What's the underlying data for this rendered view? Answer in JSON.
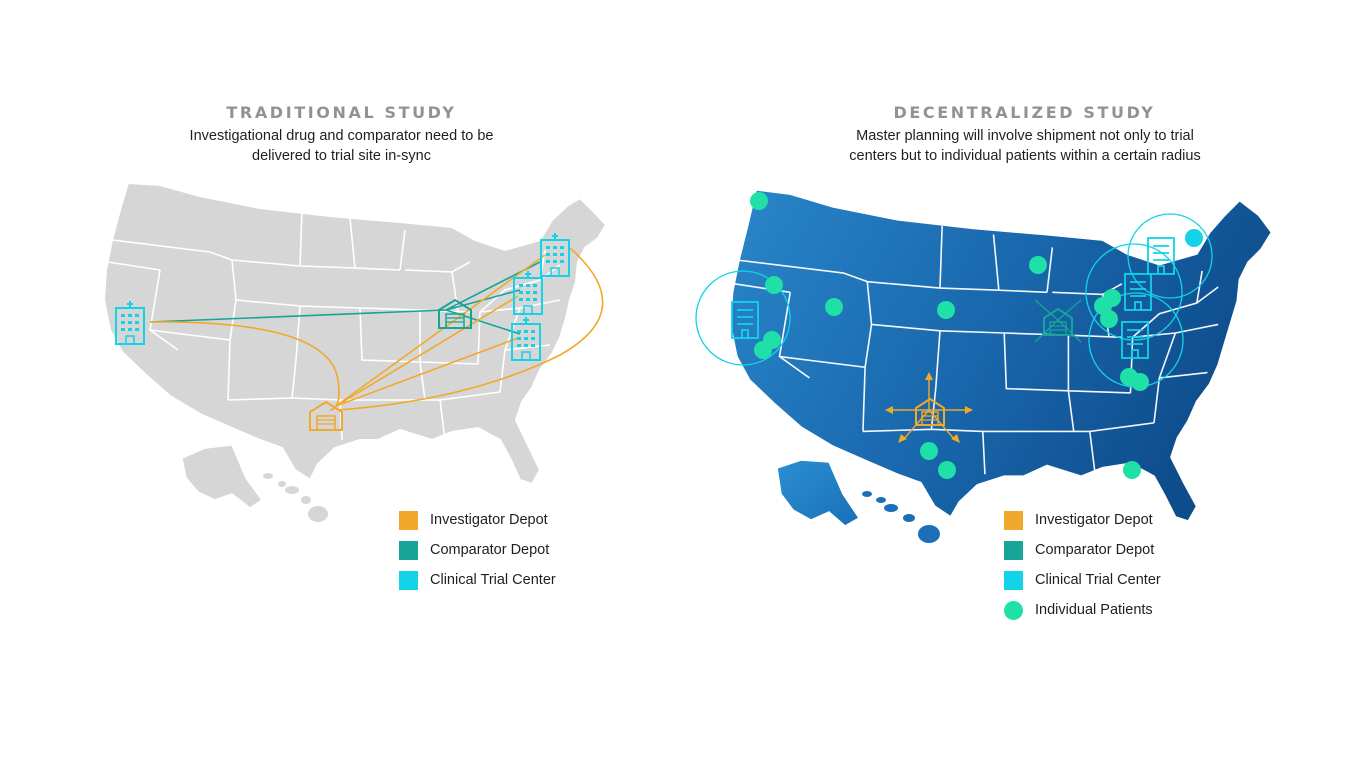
{
  "colors": {
    "investigator": "#f0a92b",
    "comparator": "#16a596",
    "clinical": "#12d3e8",
    "patient": "#1fe0a6",
    "map_gray": "#d6d6d6",
    "map_blue_light": "#2a86c9",
    "map_blue_dark": "#0e4d8c",
    "title": "#8f9399"
  },
  "traditional": {
    "title": "TRADITIONAL STUDY",
    "subtitle_line1": "Investigational drug and comparator need to be",
    "subtitle_line2": "delivered to trial site in-sync",
    "legend": [
      {
        "label": "Investigator Depot",
        "color": "#f0a92b",
        "shape": "square"
      },
      {
        "label": "Comparator Depot",
        "color": "#16a596",
        "shape": "square"
      },
      {
        "label": "Clinical Trial Center",
        "color": "#12d3e8",
        "shape": "square"
      }
    ]
  },
  "decentralized": {
    "title": "DECENTRALIZED STUDY",
    "subtitle_line1": "Master planning will involve shipment not only to trial",
    "subtitle_line2": "centers but to individual patients within a certain radius",
    "legend": [
      {
        "label": "Investigator Depot",
        "color": "#f0a92b",
        "shape": "square"
      },
      {
        "label": "Comparator Depot",
        "color": "#16a596",
        "shape": "square"
      },
      {
        "label": "Clinical Trial Center",
        "color": "#12d3e8",
        "shape": "square"
      },
      {
        "label": "Individual Patients",
        "color": "#1fe0a6",
        "shape": "circle"
      }
    ]
  }
}
